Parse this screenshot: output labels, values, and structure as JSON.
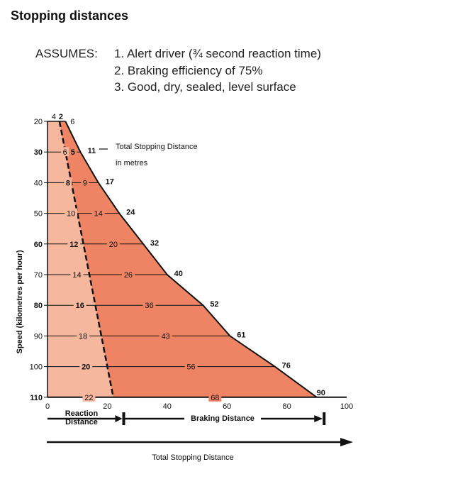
{
  "title": "Stopping distances",
  "assumes": {
    "label": "ASSUMES:",
    "items": [
      "1. Alert driver (¾ second reaction time)",
      "2. Braking efficiency of 75%",
      "3. Good, dry, sealed, level surface"
    ]
  },
  "colors": {
    "reaction_fill": "#f6b79f",
    "braking_fill": "#ef8465",
    "line": "#111111"
  },
  "chart_data": {
    "type": "area",
    "ylabel": "Speed (kilometres per hour)",
    "xlim": [
      0,
      100
    ],
    "x_ticks": [
      "0",
      "20",
      "40",
      "60",
      "80",
      "100"
    ],
    "speeds": [
      20,
      30,
      40,
      50,
      60,
      70,
      80,
      90,
      100,
      110
    ],
    "y_ticks": [
      "20",
      "30",
      "40",
      "50",
      "60",
      "70",
      "80",
      "90",
      "100",
      "110"
    ],
    "series": [
      {
        "name": "Reaction Distance",
        "values": [
          4,
          6,
          8,
          10,
          12,
          14,
          16,
          18,
          20,
          22
        ]
      },
      {
        "name": "Braking Distance",
        "values": [
          2,
          5,
          9,
          14,
          20,
          26,
          36,
          43,
          56,
          68
        ]
      },
      {
        "name": "Total Stopping Distance",
        "values": [
          6,
          11,
          17,
          24,
          32,
          40,
          52,
          61,
          76,
          90
        ]
      }
    ],
    "data_labels": {
      "reaction": [
        "4",
        "6",
        "8",
        "10",
        "12",
        "14",
        "16",
        "18",
        "20",
        "22"
      ],
      "braking": [
        "2",
        "5",
        "9",
        "14",
        "20",
        "26",
        "36",
        "43",
        "56",
        "68"
      ],
      "total": [
        "6",
        "11",
        "17",
        "24",
        "32",
        "40",
        "52",
        "61",
        "76",
        "90"
      ]
    },
    "annotation": {
      "line1": "Total Stopping Distance",
      "line2": "in metres"
    },
    "legend": {
      "reaction": [
        "Reaction",
        "Distance"
      ],
      "braking": "Braking Distance",
      "total": "Total Stopping Distance"
    }
  }
}
